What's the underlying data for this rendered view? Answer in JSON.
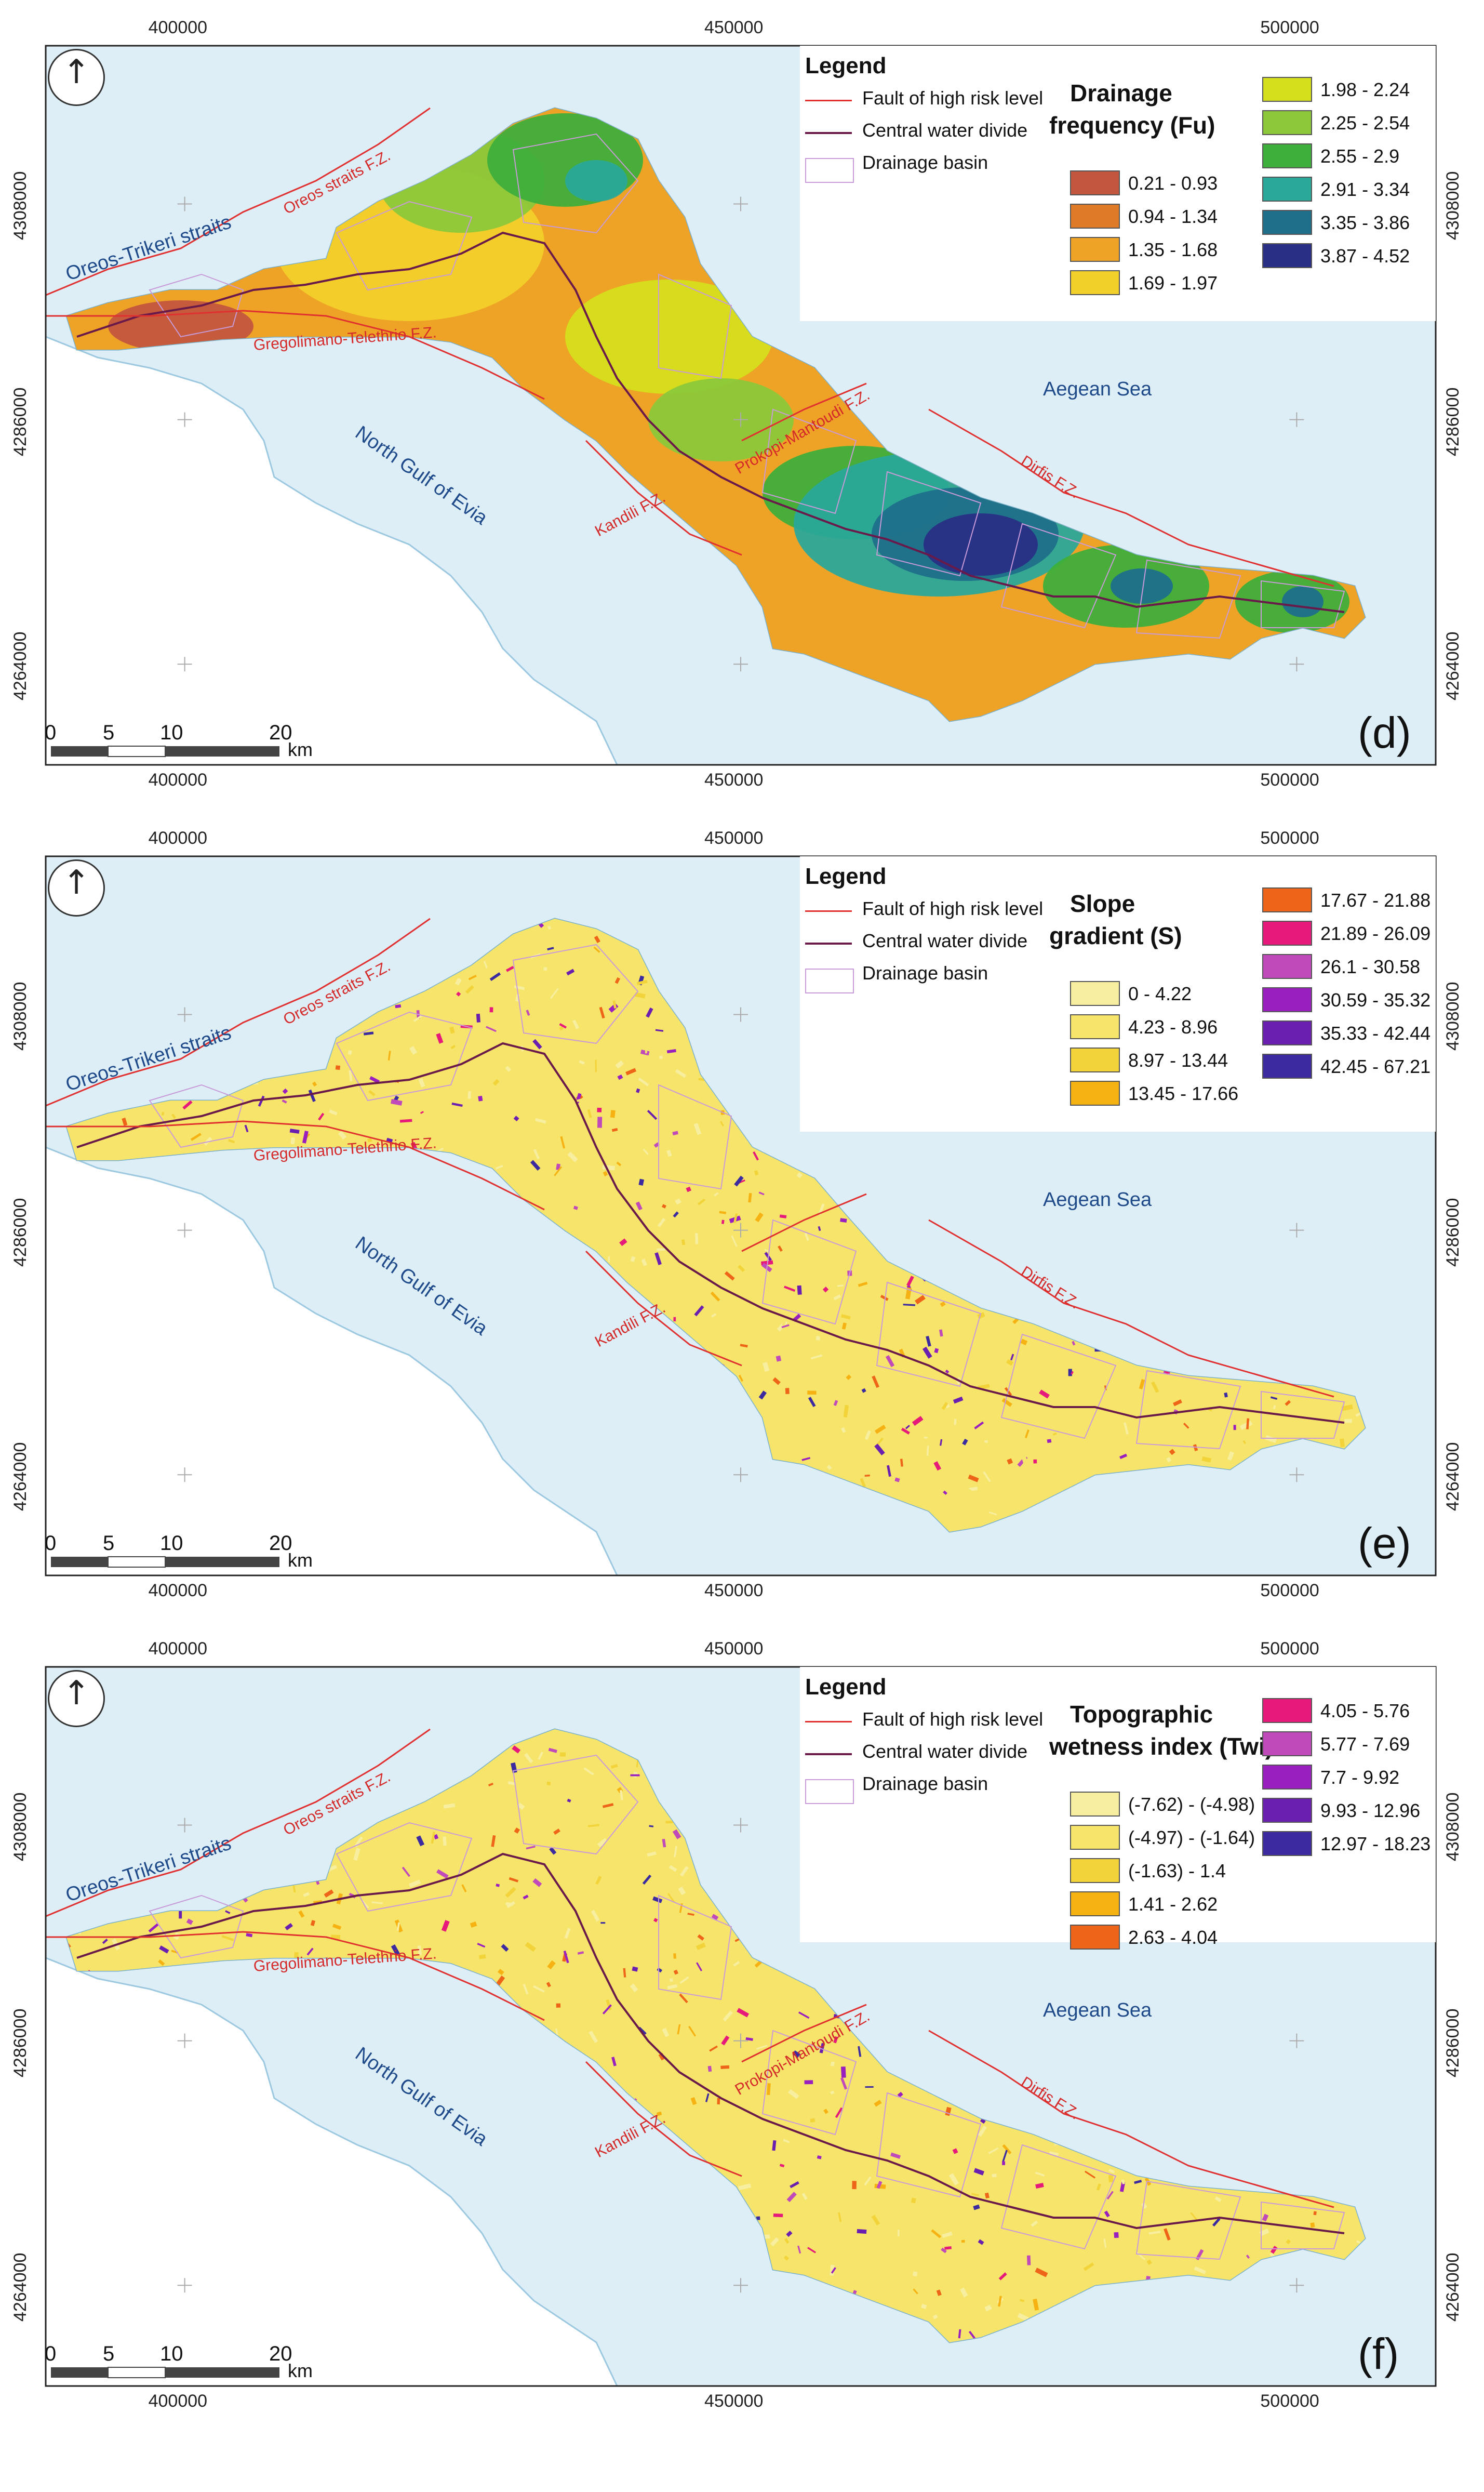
{
  "panels": [
    {
      "letter": "(d)",
      "legend_title": "Legend",
      "legend_items": [
        "Fault of high risk level",
        "Central water divide",
        "Drainage basin"
      ],
      "variable_title_1": "Drainage",
      "variable_title_2": "frequency (Fu)",
      "classes": [
        {
          "label": "0.21 - 0.93",
          "color": "#c2563e"
        },
        {
          "label": "0.94 - 1.34",
          "color": "#df7a27"
        },
        {
          "label": "1.35 - 1.68",
          "color": "#eea326"
        },
        {
          "label": "1.69 - 1.97",
          "color": "#f2d02a"
        },
        {
          "label": "1.98 - 2.24",
          "color": "#d5df1c"
        },
        {
          "label": "2.25 - 2.54",
          "color": "#8cc83a"
        },
        {
          "label": "2.55 - 2.9",
          "color": "#3eaf3a"
        },
        {
          "label": "2.91 - 3.34",
          "color": "#2aa898"
        },
        {
          "label": "3.35 - 3.86",
          "color": "#1f6f8a"
        },
        {
          "label": "3.87 - 4.52",
          "color": "#2a2f86"
        }
      ]
    },
    {
      "letter": "(e)",
      "legend_title": "Legend",
      "legend_items": [
        "Fault of high risk level",
        "Central water divide",
        "Drainage basin"
      ],
      "variable_title_1": "Slope",
      "variable_title_2": "gradient (S)",
      "classes": [
        {
          "label": "0 - 4.22",
          "color": "#f8eea0"
        },
        {
          "label": "4.23 - 8.96",
          "color": "#f6e56a"
        },
        {
          "label": "8.97 - 13.44",
          "color": "#f2d43a"
        },
        {
          "label": "13.45 - 17.66",
          "color": "#f5b212"
        },
        {
          "label": "17.67 - 21.88",
          "color": "#ee6418"
        },
        {
          "label": "21.89 - 26.09",
          "color": "#e61a7a"
        },
        {
          "label": "26.1 - 30.58",
          "color": "#c04aba"
        },
        {
          "label": "30.59 - 35.32",
          "color": "#9a1fbf"
        },
        {
          "label": "35.33 - 42.44",
          "color": "#6a1fb0"
        },
        {
          "label": "42.45 - 67.21",
          "color": "#3b2aa0"
        }
      ]
    },
    {
      "letter": "(f)",
      "legend_title": "Legend",
      "legend_items": [
        "Fault of high risk level",
        "Central water divide",
        "Drainage basin"
      ],
      "variable_title_1": "Topographic",
      "variable_title_2": "wetness index (Twi)",
      "classes": [
        {
          "label": "(-7.62) - (-4.98)",
          "color": "#f8eea0"
        },
        {
          "label": "(-4.97) - (-1.64)",
          "color": "#f6e56a"
        },
        {
          "label": "(-1.63) - 1.4",
          "color": "#f2d43a"
        },
        {
          "label": "1.41 - 2.62",
          "color": "#f5b212"
        },
        {
          "label": "2.63 - 4.04",
          "color": "#ee6418"
        },
        {
          "label": "4.05 - 5.76",
          "color": "#e61a7a"
        },
        {
          "label": "5.77 - 7.69",
          "color": "#c04aba"
        },
        {
          "label": "7.7 - 9.92",
          "color": "#9a1fbf"
        },
        {
          "label": "9.93 - 12.96",
          "color": "#6a1fb0"
        },
        {
          "label": "12.97 - 18.23",
          "color": "#3b2aa0"
        }
      ]
    }
  ],
  "place_labels": {
    "straits": "Oreos-Trikeri straits",
    "gulf": "North Gulf of Evia",
    "sea": "Aegean Sea"
  },
  "fault_labels": {
    "oreos": "Oreos straits F.Z.",
    "gregolimano": "Gregolimano-Telethrio F.Z.",
    "kandili": "Kandili F.Z.",
    "dirfis": "Dirfis F.Z.",
    "prokopi": "Prokopi-Mantoudi F.Z."
  },
  "coords": {
    "easting": [
      "400000",
      "450000",
      "500000"
    ],
    "northing": [
      "4308000",
      "4286000",
      "4264000"
    ]
  },
  "scale": {
    "ticks": [
      "0",
      "5",
      "10",
      "20"
    ],
    "unit": "km"
  },
  "colors": {
    "sea": "#ddeef7",
    "land_bg": "#ffffff",
    "fault": "#e03030",
    "divide": "#6a1a4a",
    "basin": "#c89ad8",
    "label_blue": "#1f4a8a"
  },
  "icons": {
    "north": "north-arrow-icon"
  }
}
